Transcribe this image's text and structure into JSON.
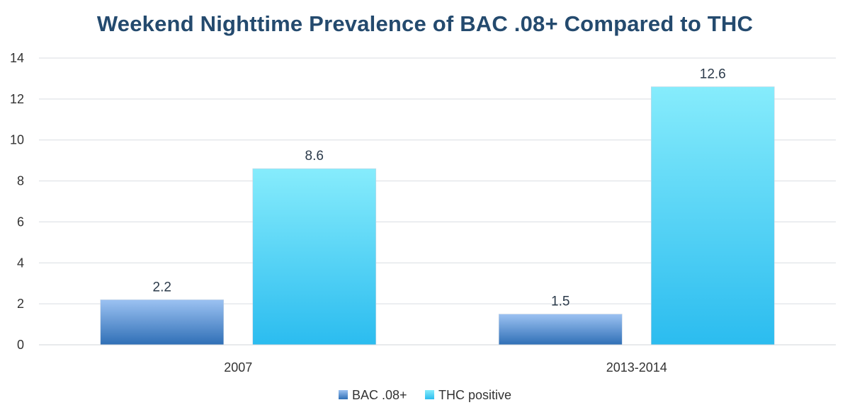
{
  "chart_data": {
    "type": "bar",
    "title": "Weekend Nighttime Prevalence of BAC .08+ Compared to THC",
    "categories": [
      "2007",
      "2013-2014"
    ],
    "series": [
      {
        "name": "BAC .08+",
        "values": [
          2.2,
          1.5
        ],
        "color_top": "#9cc2f2",
        "color_bottom": "#2f6fb6"
      },
      {
        "name": "THC positive",
        "values": [
          8.6,
          12.6
        ],
        "color_top": "#86ecfc",
        "color_bottom": "#2bbcef"
      }
    ],
    "ylim": [
      0,
      14
    ],
    "yticks": [
      0,
      2,
      4,
      6,
      8,
      10,
      12,
      14
    ],
    "grid": true,
    "legend": "bottom",
    "data_labels": true
  }
}
